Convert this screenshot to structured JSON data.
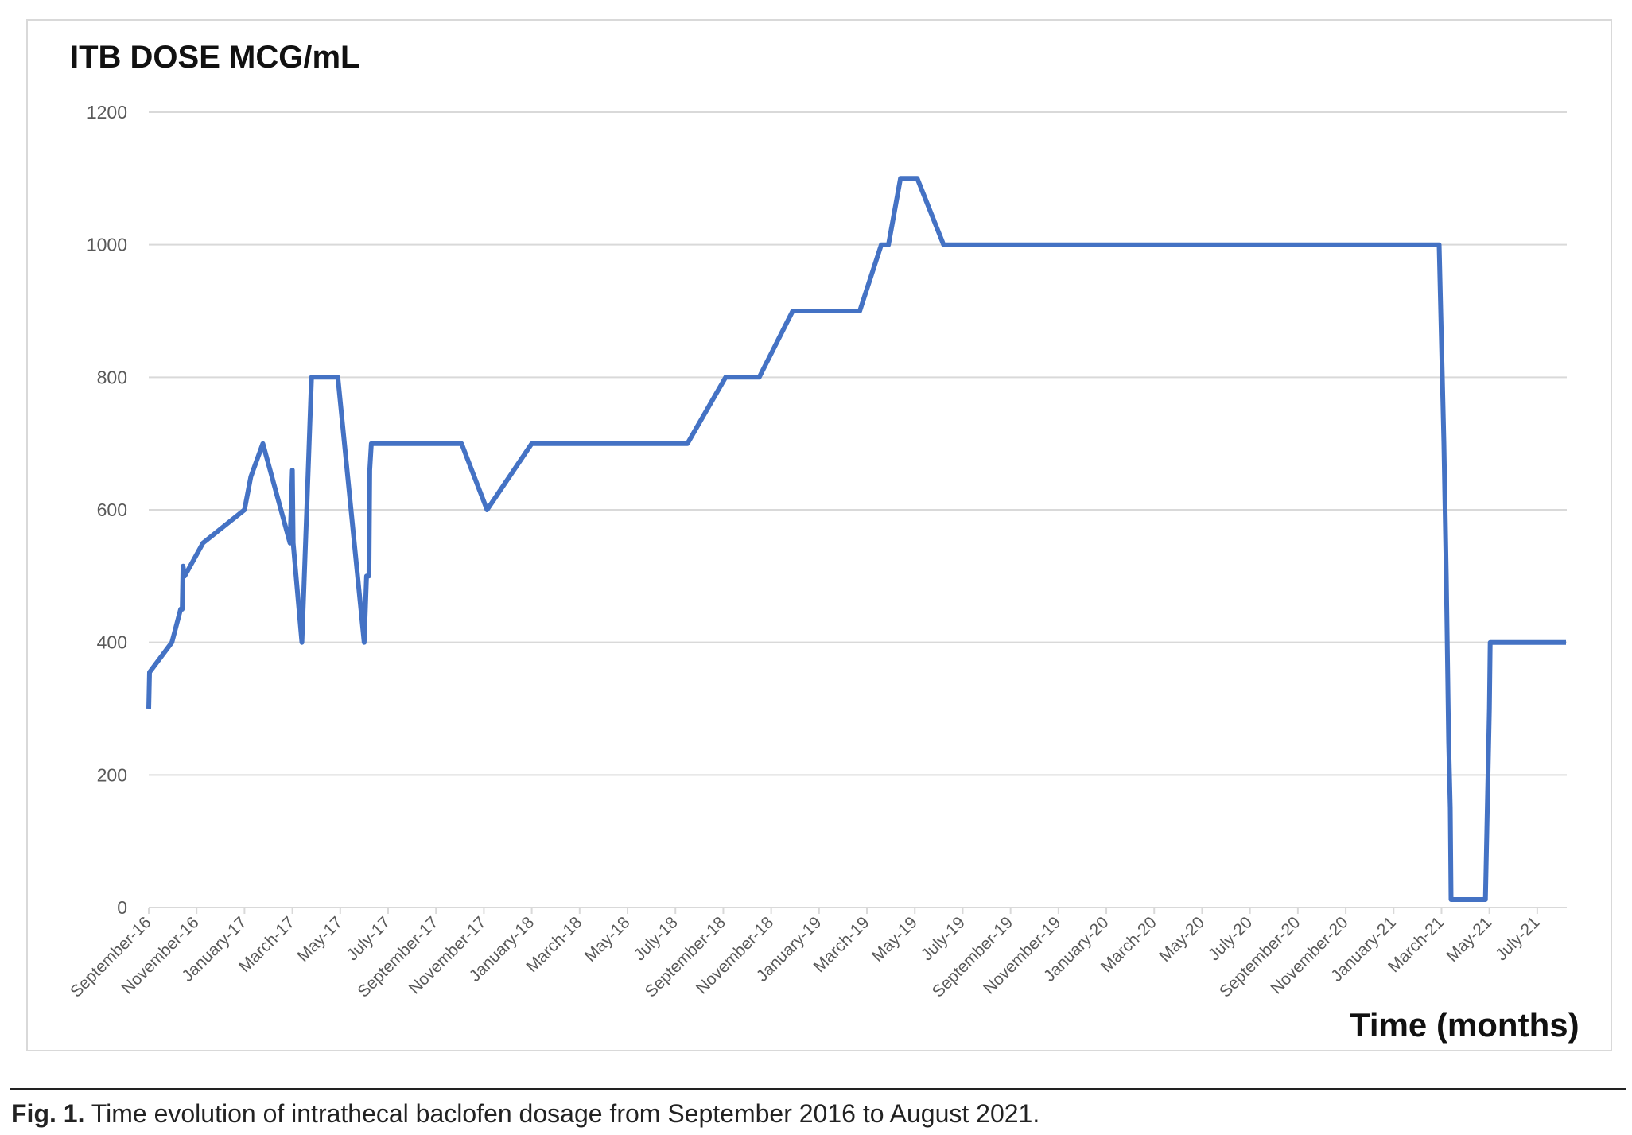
{
  "chart_data": {
    "type": "line",
    "title": "ITB DOSE MCG/mL",
    "xlabel": "Time (months)",
    "ylabel": "",
    "ylim": [
      0,
      1200
    ],
    "yticks": [
      0,
      200,
      400,
      600,
      800,
      1000,
      1200
    ],
    "xlim": [
      "2016-09-01",
      "2021-08-08"
    ],
    "xtick_labels": [
      "September-16",
      "November-16",
      "January-17",
      "March-17",
      "May-17",
      "July-17",
      "September-17",
      "November-17",
      "January-18",
      "March-18",
      "May-18",
      "July-18",
      "September-18",
      "November-18",
      "January-19",
      "March-19",
      "May-19",
      "July-19",
      "September-19",
      "November-19",
      "January-20",
      "March-20",
      "May-20",
      "July-20",
      "September-20",
      "November-20",
      "January-21",
      "March-21",
      "May-21",
      "July-21"
    ],
    "grid": true,
    "legend": "none",
    "line_color": "#4472c4",
    "series": [
      {
        "points": [
          [
            "2016-09-01",
            300
          ],
          [
            "2016-09-02",
            355
          ],
          [
            "2016-09-30",
            400
          ],
          [
            "2016-10-11",
            450
          ],
          [
            "2016-10-13",
            450
          ],
          [
            "2016-10-14",
            515
          ],
          [
            "2016-10-16",
            500
          ],
          [
            "2016-11-09",
            550
          ],
          [
            "2017-01-01",
            600
          ],
          [
            "2017-01-09",
            650
          ],
          [
            "2017-01-24",
            700
          ],
          [
            "2017-02-28",
            550
          ],
          [
            "2017-03-01",
            660
          ],
          [
            "2017-03-02",
            550
          ],
          [
            "2017-03-13",
            400
          ],
          [
            "2017-03-19",
            600
          ],
          [
            "2017-03-25",
            800
          ],
          [
            "2017-04-28",
            800
          ],
          [
            "2017-06-01",
            400
          ],
          [
            "2017-06-04",
            500
          ],
          [
            "2017-06-07",
            500
          ],
          [
            "2017-06-08",
            660
          ],
          [
            "2017-06-10",
            700
          ],
          [
            "2017-10-03",
            700
          ],
          [
            "2017-11-05",
            600
          ],
          [
            "2018-01-01",
            700
          ],
          [
            "2018-07-16",
            700
          ],
          [
            "2018-09-04",
            800
          ],
          [
            "2018-10-16",
            800
          ],
          [
            "2018-11-28",
            900
          ],
          [
            "2019-02-22",
            900
          ],
          [
            "2019-03-19",
            1000
          ],
          [
            "2019-03-28",
            1000
          ],
          [
            "2019-04-13",
            1100
          ],
          [
            "2019-05-04",
            1100
          ],
          [
            "2019-06-07",
            1000
          ],
          [
            "2021-02-28",
            1000
          ],
          [
            "2021-03-04",
            700
          ],
          [
            "2021-03-07",
            500
          ],
          [
            "2021-03-10",
            250
          ],
          [
            "2021-03-12",
            150
          ],
          [
            "2021-03-13",
            12
          ],
          [
            "2021-04-26",
            12
          ],
          [
            "2021-05-01",
            300
          ],
          [
            "2021-05-02",
            400
          ],
          [
            "2021-08-07",
            400
          ]
        ]
      }
    ]
  },
  "caption": {
    "label": "Fig. 1.",
    "text": " Time evolution of intrathecal baclofen dosage from September 2016 to August 2021."
  }
}
